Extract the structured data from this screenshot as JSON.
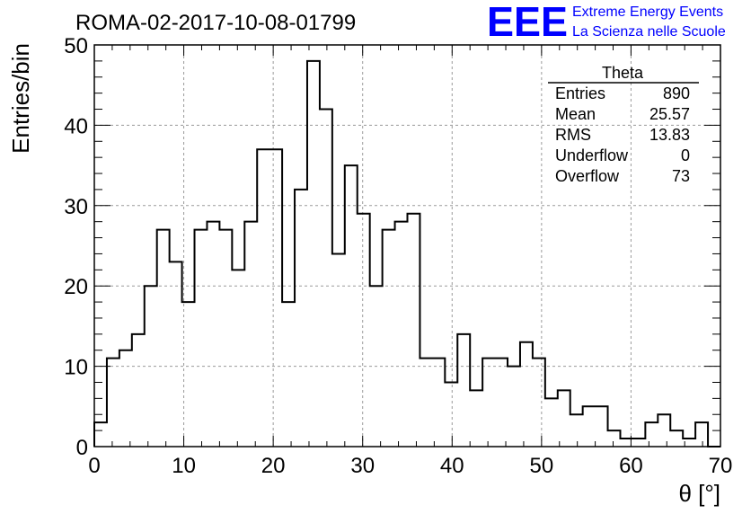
{
  "run_title": "ROMA-02-2017-10-08-01799",
  "logo": {
    "mark": "EEE",
    "line1": "Extreme Energy Events",
    "line2": "La Scienza nelle Scuole",
    "color": "#0000ff"
  },
  "stats_box": {
    "title": "Theta",
    "rows": [
      {
        "label": "Entries",
        "value": "890"
      },
      {
        "label": "Mean",
        "value": "25.57"
      },
      {
        "label": "RMS",
        "value": "13.83"
      },
      {
        "label": "Underflow",
        "value": "0"
      },
      {
        "label": "Overflow",
        "value": "73"
      }
    ]
  },
  "chart_data": {
    "type": "bar",
    "style": "step-histogram",
    "title": "ROMA-02-2017-10-08-01799",
    "xlabel": "θ [°]",
    "ylabel": "Entries/bin",
    "xlim": [
      0,
      70
    ],
    "ylim": [
      0,
      50
    ],
    "xticks": [
      0,
      10,
      20,
      30,
      40,
      50,
      60,
      70
    ],
    "yticks": [
      0,
      10,
      20,
      30,
      40,
      50
    ],
    "grid": true,
    "bin_width": 1.4,
    "bin_edges_start": 0,
    "values": [
      3,
      11,
      12,
      14,
      20,
      27,
      23,
      18,
      27,
      28,
      27,
      22,
      28,
      37,
      37,
      18,
      32,
      48,
      42,
      24,
      35,
      29,
      20,
      27,
      28,
      29,
      11,
      11,
      8,
      14,
      7,
      11,
      11,
      10,
      13,
      11,
      6,
      7,
      4,
      5,
      5,
      2,
      1,
      1,
      3,
      4,
      2,
      1,
      3,
      0
    ]
  }
}
